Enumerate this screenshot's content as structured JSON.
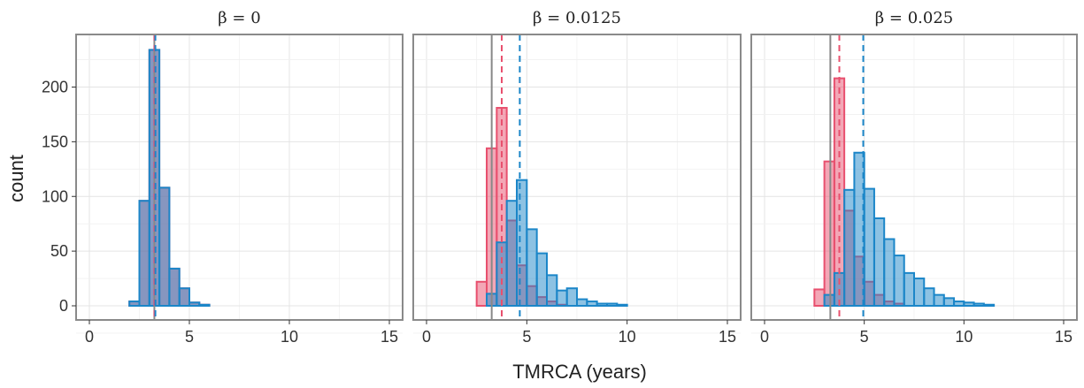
{
  "colors": {
    "pink": "#e8506e",
    "blue": "#1b86c8",
    "grey": "#888888"
  },
  "chart_data": [
    {
      "type": "histogram",
      "title": "β = 0",
      "xlabel": "TMRCA (years)",
      "ylabel": "count",
      "xlim": [
        0,
        15
      ],
      "ylim": [
        0,
        240
      ],
      "x_ticks": [
        "0",
        "5",
        "10",
        "15"
      ],
      "y_ticks": [
        "0",
        "50",
        "100",
        "150",
        "200"
      ],
      "grid": true,
      "bin_width": 0.5,
      "x": [
        0.25,
        0.75,
        1.25,
        1.75,
        2.25,
        2.75,
        3.25,
        3.75,
        4.25,
        4.75,
        5.25,
        5.75,
        6.25,
        6.75,
        7.25,
        7.75,
        8.25,
        8.75,
        9.25,
        9.75,
        10.25,
        10.75,
        11.25,
        11.75,
        12.25,
        12.75,
        13.25,
        13.75,
        14.25,
        14.75
      ],
      "series": [
        {
          "color_key": "pink",
          "values": [
            0,
            0,
            0,
            0,
            4,
            96,
            234,
            108,
            34,
            16,
            3,
            1,
            0,
            0,
            0,
            0,
            0,
            0,
            0,
            0,
            0,
            0,
            0,
            0,
            0,
            0,
            0,
            0,
            0,
            0
          ]
        },
        {
          "color_key": "blue",
          "values": [
            0,
            0,
            0,
            0,
            4,
            96,
            234,
            108,
            34,
            16,
            3,
            1,
            0,
            0,
            0,
            0,
            0,
            0,
            0,
            0,
            0,
            0,
            0,
            0,
            0,
            0,
            0,
            0,
            0,
            0
          ]
        }
      ],
      "vlines": [
        {
          "color_key": "grey",
          "style": "solid",
          "x": 3.25
        },
        {
          "color_key": "pink",
          "style": "dashed",
          "x": 3.25
        },
        {
          "color_key": "blue",
          "style": "dashed",
          "x": 3.3
        }
      ]
    },
    {
      "type": "histogram",
      "title": "β = 0.0125",
      "xlabel": "TMRCA (years)",
      "ylabel": "count",
      "xlim": [
        0,
        15
      ],
      "ylim": [
        0,
        240
      ],
      "x_ticks": [
        "0",
        "5",
        "10",
        "15"
      ],
      "y_ticks": [
        "0",
        "50",
        "100",
        "150",
        "200"
      ],
      "grid": true,
      "bin_width": 0.5,
      "x": [
        0.25,
        0.75,
        1.25,
        1.75,
        2.25,
        2.75,
        3.25,
        3.75,
        4.25,
        4.75,
        5.25,
        5.75,
        6.25,
        6.75,
        7.25,
        7.75,
        8.25,
        8.75,
        9.25,
        9.75,
        10.25,
        10.75,
        11.25,
        11.75,
        12.25,
        12.75,
        13.25,
        13.75,
        14.25,
        14.75
      ],
      "series": [
        {
          "color_key": "pink",
          "values": [
            0,
            0,
            0,
            0,
            0,
            22,
            144,
            181,
            78,
            37,
            18,
            8,
            4,
            1,
            0,
            0,
            0,
            0,
            0,
            0,
            0,
            0,
            0,
            0,
            0,
            0,
            0,
            0,
            0,
            0
          ]
        },
        {
          "color_key": "blue",
          "values": [
            0,
            0,
            0,
            0,
            0,
            0,
            11,
            58,
            96,
            115,
            70,
            48,
            28,
            14,
            16,
            6,
            4,
            2,
            2,
            1,
            0,
            0,
            0,
            0,
            0,
            0,
            0,
            0,
            0,
            0
          ]
        }
      ],
      "vlines": [
        {
          "color_key": "grey",
          "style": "solid",
          "x": 3.25
        },
        {
          "color_key": "pink",
          "style": "dashed",
          "x": 3.75
        },
        {
          "color_key": "blue",
          "style": "dashed",
          "x": 4.65
        }
      ]
    },
    {
      "type": "histogram",
      "title": "β = 0.025",
      "xlabel": "TMRCA (years)",
      "ylabel": "count",
      "xlim": [
        0,
        15
      ],
      "ylim": [
        0,
        240
      ],
      "x_ticks": [
        "0",
        "5",
        "10",
        "15"
      ],
      "y_ticks": [
        "0",
        "50",
        "100",
        "150",
        "200"
      ],
      "grid": true,
      "bin_width": 0.5,
      "x": [
        0.25,
        0.75,
        1.25,
        1.75,
        2.25,
        2.75,
        3.25,
        3.75,
        4.25,
        4.75,
        5.25,
        5.75,
        6.25,
        6.75,
        7.25,
        7.75,
        8.25,
        8.75,
        9.25,
        9.75,
        10.25,
        10.75,
        11.25,
        11.75,
        12.25,
        12.75,
        13.25,
        13.75,
        14.25,
        14.75
      ],
      "series": [
        {
          "color_key": "pink",
          "values": [
            0,
            0,
            0,
            0,
            0,
            15,
            132,
            208,
            87,
            45,
            22,
            10,
            4,
            2,
            0,
            0,
            0,
            0,
            0,
            0,
            0,
            0,
            0,
            0,
            0,
            0,
            0,
            0,
            0,
            0
          ]
        },
        {
          "color_key": "blue",
          "values": [
            0,
            0,
            0,
            0,
            0,
            0,
            10,
            30,
            106,
            140,
            107,
            80,
            61,
            46,
            30,
            25,
            16,
            10,
            7,
            4,
            3,
            2,
            1,
            0,
            0,
            0,
            0,
            0,
            0,
            0
          ]
        }
      ],
      "vlines": [
        {
          "color_key": "grey",
          "style": "solid",
          "x": 3.3
        },
        {
          "color_key": "pink",
          "style": "dashed",
          "x": 3.75
        },
        {
          "color_key": "blue",
          "style": "dashed",
          "x": 4.95
        }
      ]
    }
  ]
}
